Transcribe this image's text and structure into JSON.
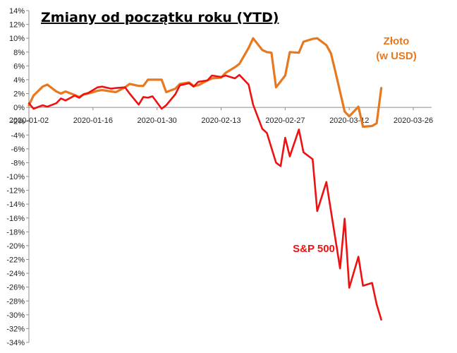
{
  "chart_data": {
    "type": "line",
    "title": "Zmiany od początku roku (YTD)",
    "xlabel": "",
    "ylabel": "",
    "ylim": [
      -34,
      14
    ],
    "yticks": [
      14,
      12,
      10,
      8,
      6,
      4,
      2,
      0,
      -2,
      -4,
      -6,
      -8,
      -10,
      -12,
      -14,
      -16,
      -18,
      -20,
      -22,
      -24,
      -26,
      -28,
      -30,
      -32,
      -34
    ],
    "ytick_labels": [
      "14%",
      "12%",
      "10%",
      "8%",
      "6%",
      "4%",
      "2%",
      "0%",
      "-2%",
      "-4%",
      "-6%",
      "-8%",
      "-10%",
      "-12%",
      "-14%",
      "-16%",
      "-18%",
      "-20%",
      "-22%",
      "-24%",
      "-26%",
      "-28%",
      "-30%",
      "-32%",
      "-34%"
    ],
    "xlim": [
      "2020-01-02",
      "2020-03-30"
    ],
    "xticks": [
      "2020-01-02",
      "2020-01-16",
      "2020-01-30",
      "2020-02-13",
      "2020-02-27",
      "2020-03-12",
      "2020-03-26"
    ],
    "grid": false,
    "series": [
      {
        "name": "Złoto\n(w USD)",
        "color": "#e8781e",
        "label_lines": [
          "Złoto",
          "(w USD)"
        ],
        "points": [
          [
            "2020-01-02",
            0.3
          ],
          [
            "2020-01-03",
            1.7
          ],
          [
            "2020-01-05",
            3.0
          ],
          [
            "2020-01-06",
            3.3
          ],
          [
            "2020-01-08",
            2.3
          ],
          [
            "2020-01-09",
            2.0
          ],
          [
            "2020-01-10",
            2.3
          ],
          [
            "2020-01-12",
            1.8
          ],
          [
            "2020-01-13",
            1.5
          ],
          [
            "2020-01-14",
            1.9
          ],
          [
            "2020-01-15",
            2.0
          ],
          [
            "2020-01-17",
            2.4
          ],
          [
            "2020-01-18",
            2.5
          ],
          [
            "2020-01-20",
            2.3
          ],
          [
            "2020-01-21",
            2.2
          ],
          [
            "2020-01-23",
            2.9
          ],
          [
            "2020-01-24",
            3.4
          ],
          [
            "2020-01-26",
            3.1
          ],
          [
            "2020-01-27",
            3.1
          ],
          [
            "2020-01-28",
            4.0
          ],
          [
            "2020-01-31",
            4.0
          ],
          [
            "2020-02-01",
            2.2
          ],
          [
            "2020-02-03",
            2.7
          ],
          [
            "2020-02-04",
            3.4
          ],
          [
            "2020-02-06",
            3.6
          ],
          [
            "2020-02-07",
            3.1
          ],
          [
            "2020-02-08",
            3.2
          ],
          [
            "2020-02-10",
            3.9
          ],
          [
            "2020-02-11",
            4.2
          ],
          [
            "2020-02-13",
            4.3
          ],
          [
            "2020-02-14",
            5.0
          ],
          [
            "2020-02-16",
            5.8
          ],
          [
            "2020-02-17",
            6.3
          ],
          [
            "2020-02-19",
            8.6
          ],
          [
            "2020-02-20",
            10.0
          ],
          [
            "2020-02-22",
            8.3
          ],
          [
            "2020-02-23",
            8.0
          ],
          [
            "2020-02-24",
            7.9
          ],
          [
            "2020-02-25",
            2.9
          ],
          [
            "2020-02-27",
            4.6
          ],
          [
            "2020-02-28",
            8.0
          ],
          [
            "2020-03-01",
            7.9
          ],
          [
            "2020-03-02",
            9.5
          ],
          [
            "2020-03-04",
            9.9
          ],
          [
            "2020-03-05",
            10.0
          ],
          [
            "2020-03-07",
            9.0
          ],
          [
            "2020-03-08",
            7.8
          ],
          [
            "2020-03-09",
            5.1
          ],
          [
            "2020-03-11",
            -0.6
          ],
          [
            "2020-03-12",
            -1.3
          ],
          [
            "2020-03-14",
            0.1
          ],
          [
            "2020-03-15",
            -2.8
          ],
          [
            "2020-03-17",
            -2.7
          ],
          [
            "2020-03-18",
            -2.3
          ],
          [
            "2020-03-19",
            2.8
          ]
        ]
      },
      {
        "name": "S&P 500",
        "color": "#ee1111",
        "label_lines": [
          "S&P 500"
        ],
        "points": [
          [
            "2020-01-02",
            0.6
          ],
          [
            "2020-01-03",
            -0.2
          ],
          [
            "2020-01-05",
            0.3
          ],
          [
            "2020-01-06",
            0.1
          ],
          [
            "2020-01-08",
            0.6
          ],
          [
            "2020-01-09",
            1.3
          ],
          [
            "2020-01-10",
            1.0
          ],
          [
            "2020-01-12",
            1.7
          ],
          [
            "2020-01-13",
            1.4
          ],
          [
            "2020-01-14",
            1.9
          ],
          [
            "2020-01-15",
            2.1
          ],
          [
            "2020-01-17",
            2.9
          ],
          [
            "2020-01-18",
            3.0
          ],
          [
            "2020-01-20",
            2.7
          ],
          [
            "2020-01-21",
            2.8
          ],
          [
            "2020-01-23",
            2.9
          ],
          [
            "2020-01-24",
            2.0
          ],
          [
            "2020-01-26",
            0.4
          ],
          [
            "2020-01-27",
            1.5
          ],
          [
            "2020-01-28",
            1.4
          ],
          [
            "2020-01-29",
            1.6
          ],
          [
            "2020-01-31",
            -0.2
          ],
          [
            "2020-02-01",
            0.3
          ],
          [
            "2020-02-03",
            1.9
          ],
          [
            "2020-02-04",
            3.2
          ],
          [
            "2020-02-06",
            3.5
          ],
          [
            "2020-02-07",
            3.0
          ],
          [
            "2020-02-08",
            3.7
          ],
          [
            "2020-02-10",
            3.9
          ],
          [
            "2020-02-11",
            4.6
          ],
          [
            "2020-02-13",
            4.4
          ],
          [
            "2020-02-14",
            4.6
          ],
          [
            "2020-02-16",
            4.2
          ],
          [
            "2020-02-17",
            4.7
          ],
          [
            "2020-02-19",
            3.3
          ],
          [
            "2020-02-20",
            0.4
          ],
          [
            "2020-02-22",
            -3.1
          ],
          [
            "2020-02-23",
            -3.7
          ],
          [
            "2020-02-25",
            -8.0
          ],
          [
            "2020-02-26",
            -8.5
          ],
          [
            "2020-02-27",
            -4.4
          ],
          [
            "2020-02-28",
            -7.1
          ],
          [
            "2020-03-01",
            -3.2
          ],
          [
            "2020-03-02",
            -6.5
          ],
          [
            "2020-03-04",
            -7.5
          ],
          [
            "2020-03-05",
            -15.0
          ],
          [
            "2020-03-07",
            -10.8
          ],
          [
            "2020-03-08",
            -15.0
          ],
          [
            "2020-03-10",
            -23.3
          ],
          [
            "2020-03-11",
            -16.1
          ],
          [
            "2020-03-12",
            -26.1
          ],
          [
            "2020-03-14",
            -21.6
          ],
          [
            "2020-03-15",
            -25.8
          ],
          [
            "2020-03-17",
            -25.4
          ],
          [
            "2020-03-18",
            -28.5
          ],
          [
            "2020-03-19",
            -30.7
          ]
        ]
      }
    ]
  }
}
